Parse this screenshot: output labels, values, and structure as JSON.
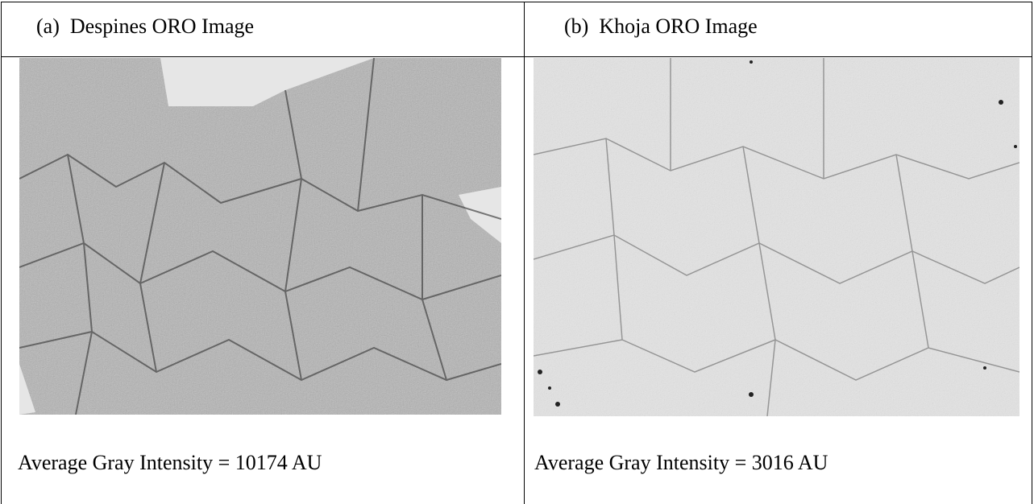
{
  "table": {
    "headers": [
      "(a)  Despines ORO Image",
      "(b)  Khoja ORO Image"
    ],
    "captions": [
      "Average Gray Intensity = 10174 AU",
      "Average Gray Intensity = 3016 AU"
    ]
  }
}
